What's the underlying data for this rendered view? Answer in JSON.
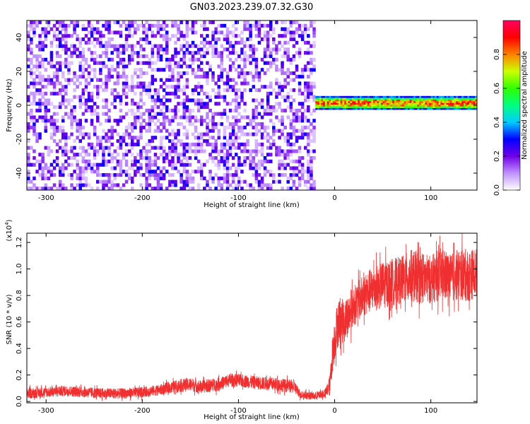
{
  "title": "GN03.2023.239.07.32.G30",
  "chart_data": [
    {
      "type": "heatmap",
      "xlabel": "Height of straight line (km)",
      "ylabel": "Frequency (Hz)",
      "xlim": [
        -320,
        148
      ],
      "ylim": [
        -50,
        50
      ],
      "xticks": [
        -300,
        -200,
        -100,
        0,
        100
      ],
      "xtick_labels": [
        "-300",
        "-200",
        "-100",
        "0",
        "100"
      ],
      "yticks": [
        -40,
        -20,
        0,
        20,
        40
      ],
      "ytick_labels": [
        "-40",
        "-20",
        "0",
        "20",
        "40"
      ],
      "noise_region": {
        "x": [
          -320,
          -20
        ],
        "y": [
          -50,
          50
        ],
        "amplitude_range": [
          0.0,
          0.3
        ]
      },
      "signal_band": {
        "x": [
          -20,
          148
        ],
        "center_hz": 1.5,
        "half_width_hz": 3,
        "peak_amplitude": 0.9
      },
      "colorbar": {
        "label": "Normalized spectral amplitude",
        "range": [
          0,
          1
        ],
        "ticks": [
          0.0,
          0.2,
          0.4,
          0.6,
          0.8
        ],
        "tick_labels": [
          "0.0",
          "0.2",
          "0.4",
          "0.6",
          "0.8"
        ],
        "colors": [
          "#ffffff",
          "#c090ff",
          "#7000e8",
          "#0000ff",
          "#00ccff",
          "#00ff80",
          "#30ff00",
          "#ccff00",
          "#ff8000",
          "#ff0000",
          "#ff0060"
        ]
      },
      "grid": false
    },
    {
      "type": "line",
      "xlabel": "Height of straight line (km)",
      "ylabel": "SNR (10 * v/v)",
      "multiplier": "(x10^4)",
      "multiplier_base": "(x10",
      "multiplier_exp": "4",
      "multiplier_close": ")",
      "xlim": [
        -320,
        148
      ],
      "ylim": [
        -0.01,
        1.27
      ],
      "xticks": [
        -300,
        -200,
        -100,
        0,
        100
      ],
      "xtick_labels": [
        "-300",
        "-200",
        "-100",
        "0",
        "100"
      ],
      "yticks": [
        0.0,
        0.2,
        0.4,
        0.6,
        0.8,
        1.0,
        1.2
      ],
      "ytick_labels": [
        "0.0",
        "0.2",
        "0.4",
        "0.6",
        "0.8",
        "1.0",
        "1.2"
      ],
      "series": [
        {
          "color": "#f03030",
          "x": [
            -320,
            -300,
            -280,
            -260,
            -240,
            -220,
            -200,
            -180,
            -160,
            -150,
            -140,
            -120,
            -110,
            -100,
            -80,
            -60,
            -42,
            -35,
            -20,
            -10,
            -5,
            -2,
            2,
            5,
            10,
            20,
            30,
            40,
            50,
            60,
            70,
            80,
            90,
            100,
            110,
            120,
            130,
            140,
            148
          ],
          "y": [
            0.06,
            0.07,
            0.08,
            0.07,
            0.06,
            0.06,
            0.07,
            0.09,
            0.12,
            0.13,
            0.11,
            0.13,
            0.16,
            0.16,
            0.14,
            0.13,
            0.11,
            0.05,
            0.04,
            0.06,
            0.12,
            0.38,
            0.55,
            0.62,
            0.6,
            0.72,
            0.8,
            0.85,
            0.88,
            0.9,
            0.92,
            0.95,
            0.93,
            0.92,
            0.96,
            0.93,
            0.96,
            0.95,
            0.98
          ],
          "noise": [
            0.04,
            0.04,
            0.04,
            0.04,
            0.04,
            0.04,
            0.04,
            0.04,
            0.05,
            0.05,
            0.05,
            0.05,
            0.05,
            0.05,
            0.05,
            0.05,
            0.05,
            0.03,
            0.03,
            0.03,
            0.08,
            0.15,
            0.17,
            0.18,
            0.16,
            0.15,
            0.16,
            0.17,
            0.18,
            0.18,
            0.18,
            0.2,
            0.2,
            0.18,
            0.2,
            0.18,
            0.2,
            0.2,
            0.18
          ]
        }
      ],
      "grid": false
    }
  ]
}
